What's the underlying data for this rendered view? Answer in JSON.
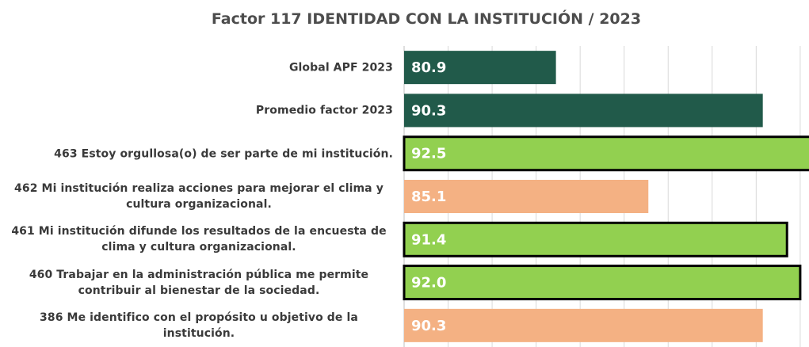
{
  "chart_data": {
    "type": "hbar",
    "title": "Factor 117 IDENTIDAD CON LA INSTITUCIÓN / 2023",
    "categories": [
      "Global APF 2023",
      "Promedio factor 2023",
      "463 Estoy orgullosa(o) de ser parte de mi institución.",
      "462 Mi institución realiza acciones para mejorar el clima y cultura organizacional.",
      "461 Mi institución difunde los resultados de la encuesta de clima y cultura organizacional.",
      "460 Trabajar en la administración pública me permite contribuir al bienestar de la sociedad.",
      "386 Me identifico con el propósito u objetivo de la institución."
    ],
    "values": [
      80.9,
      90.3,
      92.5,
      85.1,
      91.4,
      92.0,
      90.3
    ],
    "value_labels": [
      "80.9",
      "90.3",
      "92.5",
      "85.1",
      "91.4",
      "92.0",
      "90.3"
    ],
    "colors": [
      "#215a4a",
      "#215a4a",
      "#92d050",
      "#f4b183",
      "#92d050",
      "#92d050",
      "#f4b183"
    ],
    "outlined": [
      false,
      false,
      true,
      false,
      true,
      true,
      false
    ],
    "xlim": [
      74,
      92.4
    ],
    "xticks": [
      76,
      78,
      80,
      82,
      84,
      86,
      88,
      90,
      92
    ],
    "tick_labels": false,
    "grid": true
  }
}
